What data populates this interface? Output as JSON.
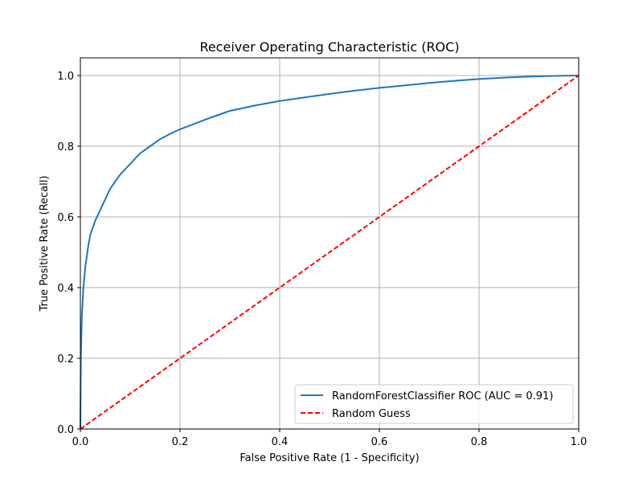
{
  "chart_data": {
    "type": "line",
    "title": "Receiver Operating Characteristic (ROC)",
    "xlabel": "False Positive Rate (1 - Specificity)",
    "ylabel": "True Positive Rate (Recall)",
    "xlim": [
      0,
      1
    ],
    "ylim": [
      0,
      1.05
    ],
    "xticks": [
      "0.0",
      "0.2",
      "0.4",
      "0.6",
      "0.8",
      "1.0"
    ],
    "yticks": [
      "0.0",
      "0.2",
      "0.4",
      "0.6",
      "0.8",
      "1.0"
    ],
    "grid": true,
    "legend_position": "lower-right",
    "series": [
      {
        "name": "RandomForestClassifier ROC (AUC = 0.91)",
        "color": "#1f77b4",
        "style": "solid",
        "x": [
          0,
          0.001,
          0.003,
          0.006,
          0.01,
          0.015,
          0.02,
          0.03,
          0.04,
          0.05,
          0.06,
          0.08,
          0.1,
          0.12,
          0.14,
          0.16,
          0.18,
          0.2,
          0.25,
          0.3,
          0.35,
          0.4,
          0.45,
          0.5,
          0.55,
          0.6,
          0.65,
          0.7,
          0.75,
          0.8,
          0.85,
          0.9,
          0.95,
          1.0
        ],
        "y": [
          0,
          0.2,
          0.32,
          0.4,
          0.46,
          0.51,
          0.55,
          0.59,
          0.62,
          0.65,
          0.68,
          0.72,
          0.75,
          0.78,
          0.8,
          0.82,
          0.835,
          0.848,
          0.875,
          0.9,
          0.915,
          0.928,
          0.938,
          0.948,
          0.957,
          0.965,
          0.972,
          0.979,
          0.985,
          0.99,
          0.994,
          0.997,
          0.999,
          1.0
        ]
      },
      {
        "name": "Random Guess",
        "color": "#ff0000",
        "style": "dashed",
        "x": [
          0,
          1
        ],
        "y": [
          0,
          1
        ]
      }
    ]
  }
}
